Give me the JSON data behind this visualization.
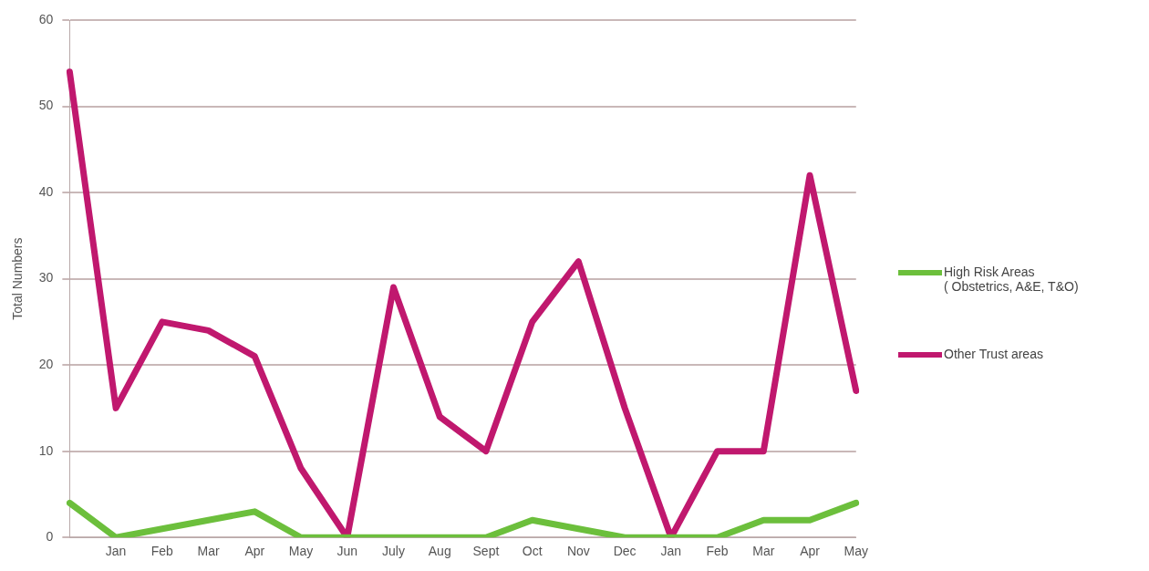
{
  "chart_data": {
    "type": "line",
    "ylabel": "Total Numbers",
    "categories": [
      null,
      "Jan",
      "Feb",
      "Mar",
      "Apr",
      "May",
      "Jun",
      "July",
      "Aug",
      "Sept",
      "Oct",
      "Nov",
      "Dec",
      "Jan",
      "Feb",
      "Mar",
      "Apr",
      "May"
    ],
    "series": [
      {
        "name": "High Risk Areas\n( Obstetrics, A&E, T&O)",
        "color": "#6cbf3c",
        "values": [
          4,
          0,
          1,
          2,
          3,
          0,
          0,
          0,
          0,
          0,
          2,
          1,
          0,
          0,
          0,
          2,
          2,
          4
        ]
      },
      {
        "name": "Other Trust areas",
        "color": "#c0186e",
        "values": [
          54,
          15,
          25,
          24,
          21,
          8,
          0,
          29,
          14,
          10,
          25,
          32,
          15,
          0,
          10,
          10,
          42,
          17
        ]
      }
    ],
    "ylim": [
      0,
      60
    ],
    "yticks": [
      0,
      10,
      20,
      30,
      40,
      50,
      60
    ],
    "grid": "y",
    "legend": "right",
    "marker": "none",
    "line_style": "solid"
  }
}
